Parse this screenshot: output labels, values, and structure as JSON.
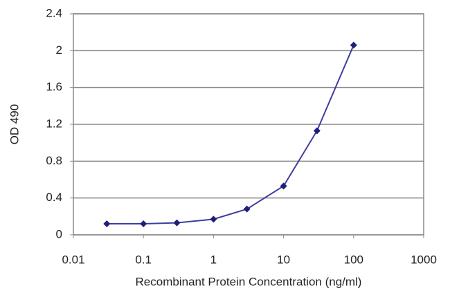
{
  "chart_data": {
    "type": "line",
    "x_label": "Recombinant Protein Concentration (ng/ml)",
    "y_label": "OD 490",
    "x": [
      0.03,
      0.1,
      0.3,
      1,
      3,
      10,
      30,
      100
    ],
    "series": [
      {
        "color": "#3d3d9f",
        "values": [
          0.12,
          0.12,
          0.13,
          0.17,
          0.28,
          0.53,
          1.13,
          2.06
        ]
      }
    ],
    "xscale": "log",
    "xlim": [
      0.01,
      1000
    ],
    "xticks": [
      0.01,
      0.1,
      1,
      10,
      100,
      1000
    ],
    "ylim": [
      0,
      2.4
    ],
    "yticks": [
      0,
      0.4,
      0.8,
      1.2,
      1.6,
      2,
      2.4
    ],
    "grid": true,
    "marker_color": "#1f1f7a"
  }
}
